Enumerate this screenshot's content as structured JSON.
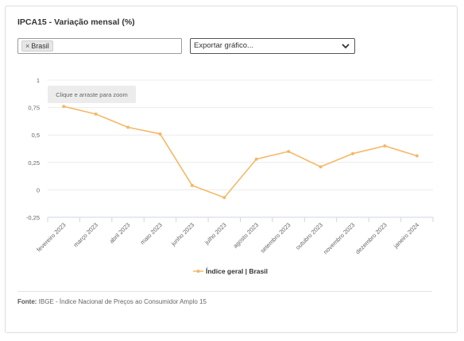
{
  "title": "IPCA15 - Variação mensal (%)",
  "filter": {
    "tag_label": "Brasil",
    "remove_glyph": "×"
  },
  "export": {
    "label": "Exportar gráfico..."
  },
  "zoom_hint": "Clique e arraste para zoom",
  "source": {
    "label": "Fonte:",
    "text": "IBGE - Índice Nacional de Preços ao Consumidor Amplo 15"
  },
  "colors": {
    "series": "#f5b867",
    "grid": "#ececec",
    "axis": "#ccd6eb"
  },
  "chart_data": {
    "type": "line",
    "title": "IPCA15 - Variação mensal (%)",
    "categories": [
      "fevereiro 2023",
      "março 2023",
      "abril 2023",
      "maio 2023",
      "junho 2023",
      "julho 2023",
      "agosto 2023",
      "setembro 2023",
      "outubro 2023",
      "novembro 2023",
      "dezembro 2023",
      "janeiro 2024"
    ],
    "series": [
      {
        "name": "Índice geral | Brasil",
        "values": [
          0.76,
          0.69,
          0.57,
          0.51,
          0.04,
          -0.07,
          0.28,
          0.35,
          0.21,
          0.33,
          0.4,
          0.31
        ]
      }
    ],
    "yticks": [
      "1",
      "0,75",
      "0,5",
      "0,25",
      "0",
      "-0,25"
    ],
    "ylim": [
      -0.25,
      1
    ],
    "grid": true,
    "legend": "bottom-center"
  }
}
